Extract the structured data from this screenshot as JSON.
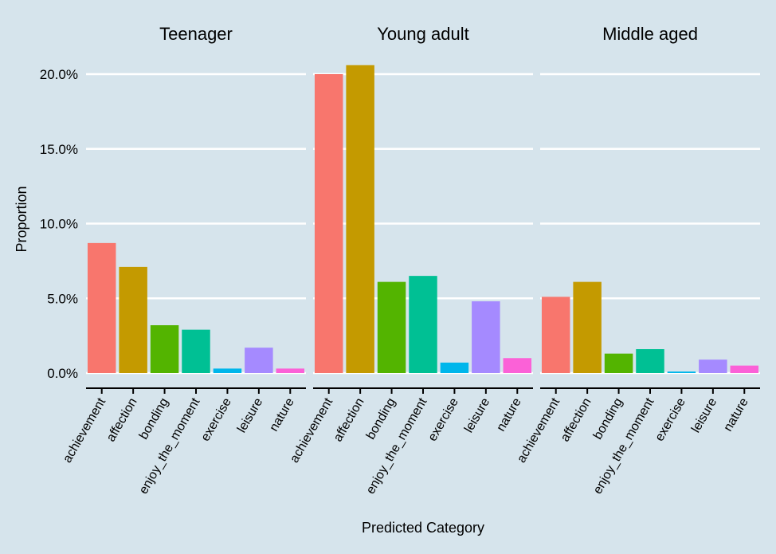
{
  "chart_data": {
    "type": "bar",
    "xlabel": "Predicted Category",
    "ylabel": "Proportion",
    "ylim": [
      0,
      0.21
    ],
    "yticks": [
      0,
      0.05,
      0.1,
      0.15,
      0.2
    ],
    "ytick_labels": [
      "0.0%",
      "5.0%",
      "10.0%",
      "15.0%",
      "20.0%"
    ],
    "grid": true,
    "legend": "none",
    "categories": [
      "achievement",
      "affection",
      "bonding",
      "enjoy_the_moment",
      "exercise",
      "leisure",
      "nature"
    ],
    "colors": [
      "#f8766d",
      "#c49a00",
      "#53b400",
      "#00c094",
      "#00b6eb",
      "#a58aff",
      "#fb61d7"
    ],
    "background": "#d6e4ec",
    "grid_color": "#ffffff",
    "facets": [
      {
        "name": "Teenager",
        "values": [
          0.087,
          0.071,
          0.032,
          0.029,
          0.003,
          0.017,
          0.003
        ]
      },
      {
        "name": "Young adult",
        "values": [
          0.2,
          0.206,
          0.061,
          0.065,
          0.007,
          0.048,
          0.01
        ]
      },
      {
        "name": "Middle aged",
        "values": [
          0.051,
          0.061,
          0.013,
          0.016,
          0.001,
          0.009,
          0.005
        ]
      }
    ]
  }
}
